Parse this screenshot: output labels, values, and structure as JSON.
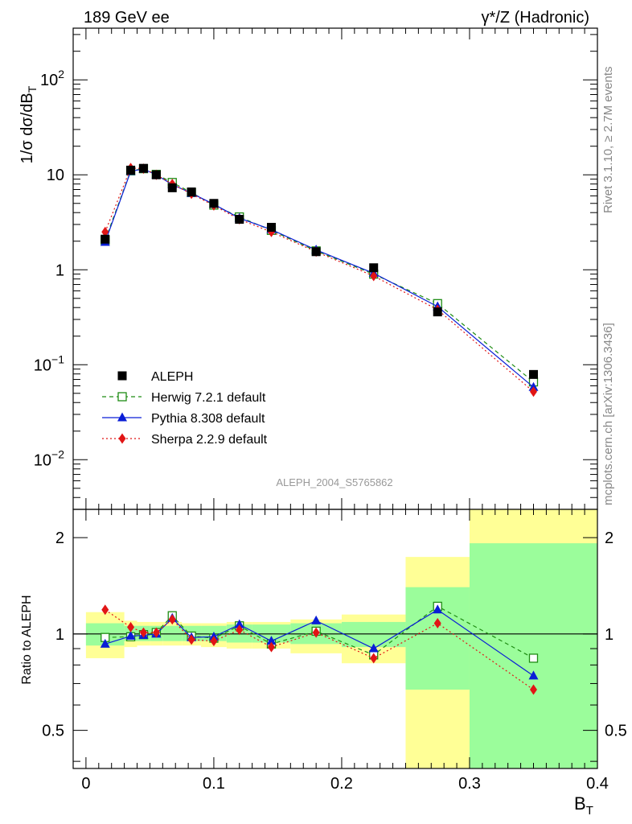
{
  "header": {
    "left": "189 GeV ee",
    "right": "γ*/Z (Hadronic)"
  },
  "side_labels": {
    "rivet": "Rivet 3.1.10, ≥ 2.7M events",
    "site": "mcplots.cern.ch [arXiv:1306.3436]"
  },
  "watermark": "ALEPH_2004_S5765862",
  "chart_data": [
    {
      "type": "line",
      "panel": "main",
      "ylabel": "1/σ  dσ/dB_T",
      "yscale": "log",
      "ylim": [
        0.003,
        350
      ],
      "xlim": [
        -0.01,
        0.4
      ],
      "y_tick_labels": [
        {
          "value": 0.01,
          "label": "10",
          "exp": "−2"
        },
        {
          "value": 0.1,
          "label": "10",
          "exp": "−1"
        },
        {
          "value": 1,
          "label": "1",
          "exp": ""
        },
        {
          "value": 10,
          "label": "10",
          "exp": ""
        },
        {
          "value": 100,
          "label": "10",
          "exp": "2"
        }
      ],
      "x": [
        0.015,
        0.035,
        0.045,
        0.055,
        0.0675,
        0.0825,
        0.1,
        0.12,
        0.145,
        0.18,
        0.225,
        0.275,
        0.35
      ],
      "series": [
        {
          "name": "ALEPH",
          "color": "#000000",
          "marker": "filled-square",
          "values": [
            2.1,
            11.2,
            11.7,
            10.0,
            7.3,
            6.6,
            5.0,
            3.4,
            2.8,
            1.55,
            1.05,
            0.36,
            0.079
          ]
        },
        {
          "name": "Herwig 7.2.1 default",
          "color": "#1e8c13",
          "marker": "open-square",
          "dash": "5,4",
          "values": [
            2.05,
            11.0,
            11.6,
            10.1,
            8.3,
            6.5,
            4.8,
            3.6,
            2.6,
            1.58,
            0.9,
            0.44,
            0.066
          ]
        },
        {
          "name": "Pythia 8.308 default",
          "color": "#0a1ed6",
          "marker": "filled-triangle",
          "values": [
            1.95,
            10.9,
            11.5,
            10.0,
            7.9,
            6.4,
            4.9,
            3.5,
            2.65,
            1.62,
            0.92,
            0.41,
            0.058
          ]
        },
        {
          "name": "Sherpa 2.2.9 default",
          "color": "#e11515",
          "marker": "filled-diamond",
          "dash": "2,3",
          "values": [
            2.5,
            11.8,
            11.6,
            10.0,
            8.0,
            6.3,
            4.75,
            3.4,
            2.5,
            1.55,
            0.86,
            0.38,
            0.052
          ]
        }
      ]
    },
    {
      "type": "line",
      "panel": "ratio",
      "ylabel": "Ratio to ALEPH",
      "xlabel": "B_T",
      "yscale": "log",
      "ylim": [
        0.38,
        2.45
      ],
      "xlim": [
        -0.01,
        0.4
      ],
      "reference_line": 1,
      "y_ticks": [
        0.5,
        1,
        2
      ],
      "x_ticks": [
        0,
        0.1,
        0.2,
        0.3,
        0.4
      ],
      "uncertainty_bands": [
        {
          "x0": 0.0,
          "x1": 0.03,
          "stat": [
            0.92,
            1.08
          ],
          "total": [
            0.84,
            1.17
          ]
        },
        {
          "x0": 0.03,
          "x1": 0.04,
          "stat": [
            0.95,
            1.06
          ],
          "total": [
            0.91,
            1.1
          ]
        },
        {
          "x0": 0.04,
          "x1": 0.05,
          "stat": [
            0.95,
            1.06
          ],
          "total": [
            0.92,
            1.09
          ]
        },
        {
          "x0": 0.05,
          "x1": 0.06,
          "stat": [
            0.95,
            1.06
          ],
          "total": [
            0.92,
            1.09
          ]
        },
        {
          "x0": 0.06,
          "x1": 0.075,
          "stat": [
            0.95,
            1.06
          ],
          "total": [
            0.92,
            1.09
          ]
        },
        {
          "x0": 0.075,
          "x1": 0.09,
          "stat": [
            0.95,
            1.06
          ],
          "total": [
            0.92,
            1.08
          ]
        },
        {
          "x0": 0.09,
          "x1": 0.11,
          "stat": [
            0.95,
            1.06
          ],
          "total": [
            0.91,
            1.08
          ]
        },
        {
          "x0": 0.11,
          "x1": 0.13,
          "stat": [
            0.94,
            1.07
          ],
          "total": [
            0.9,
            1.09
          ]
        },
        {
          "x0": 0.13,
          "x1": 0.16,
          "stat": [
            0.94,
            1.07
          ],
          "total": [
            0.9,
            1.09
          ]
        },
        {
          "x0": 0.16,
          "x1": 0.2,
          "stat": [
            0.93,
            1.08
          ],
          "total": [
            0.87,
            1.11
          ]
        },
        {
          "x0": 0.2,
          "x1": 0.25,
          "stat": [
            0.91,
            1.09
          ],
          "total": [
            0.81,
            1.15
          ]
        },
        {
          "x0": 0.25,
          "x1": 0.3,
          "stat": [
            0.67,
            1.4
          ],
          "total": [
            0.38,
            1.74
          ]
        },
        {
          "x0": 0.3,
          "x1": 0.4,
          "stat": [
            0.38,
            1.92
          ],
          "total": [
            0.38,
            2.45
          ]
        }
      ],
      "band_colors": {
        "stat": "#9bfd9b",
        "total": "#ffff96"
      },
      "series": [
        {
          "name": "Herwig 7.2.1 default",
          "color": "#1e8c13",
          "marker": "open-square",
          "dash": "5,4",
          "values": [
            0.975,
            0.98,
            0.995,
            1.01,
            1.14,
            0.985,
            0.97,
            1.06,
            0.93,
            1.02,
            0.86,
            1.22,
            0.84
          ]
        },
        {
          "name": "Pythia 8.308 default",
          "color": "#0a1ed6",
          "marker": "filled-triangle",
          "values": [
            0.93,
            0.985,
            0.99,
            1.0,
            1.12,
            0.975,
            0.98,
            1.07,
            0.95,
            1.1,
            0.9,
            1.19,
            0.74
          ]
        },
        {
          "name": "Sherpa 2.2.9 default",
          "color": "#e11515",
          "marker": "filled-diamond",
          "dash": "2,3",
          "values": [
            1.19,
            1.05,
            1.01,
            1.01,
            1.11,
            0.96,
            0.95,
            1.03,
            0.91,
            1.01,
            0.84,
            1.08,
            0.67
          ]
        }
      ]
    }
  ],
  "legend": [
    {
      "label": "ALEPH",
      "marker": "filled-square",
      "color": "#000000"
    },
    {
      "label": "Herwig 7.2.1 default",
      "marker": "open-square",
      "color": "#1e8c13",
      "dash": "5,4"
    },
    {
      "label": "Pythia 8.308 default",
      "marker": "filled-triangle",
      "color": "#0a1ed6"
    },
    {
      "label": "Sherpa 2.2.9 default",
      "marker": "filled-diamond",
      "color": "#e11515",
      "dash": "2,3"
    }
  ]
}
